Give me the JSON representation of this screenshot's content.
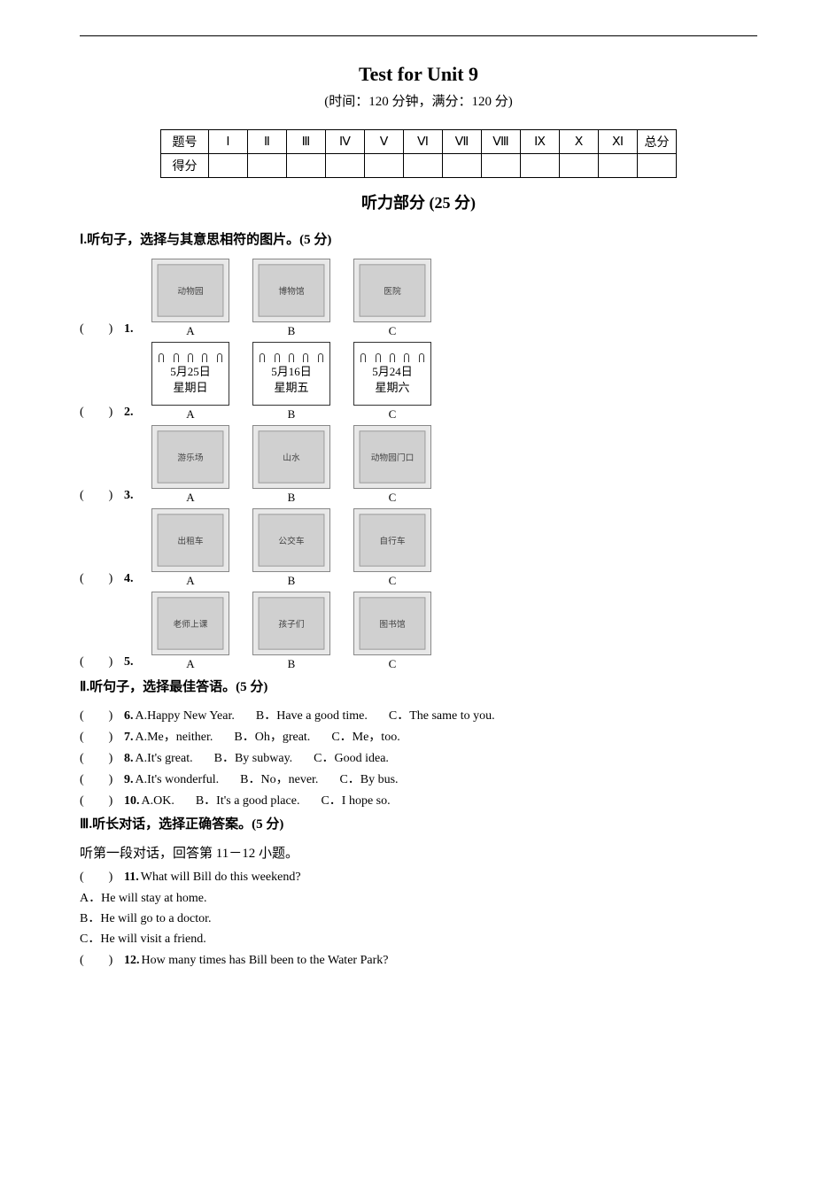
{
  "title": "Test for Unit 9",
  "subtitle": "(时间：120 分钟，满分：120 分)",
  "score_table": {
    "row1": [
      "题号",
      "Ⅰ",
      "Ⅱ",
      "Ⅲ",
      "Ⅳ",
      "Ⅴ",
      "Ⅵ",
      "Ⅶ",
      "Ⅷ",
      "Ⅸ",
      "Ⅹ",
      "Ⅺ",
      "总分"
    ],
    "row2_label": "得分"
  },
  "listening_title": "听力部分 (25 分)",
  "part1": {
    "heading": "Ⅰ.听句子，选择与其意思相符的图片。(5 分)",
    "questions": [
      {
        "num": "1.",
        "images": [
          {
            "label": "A",
            "desc": "动物园"
          },
          {
            "label": "B",
            "desc": "博物馆"
          },
          {
            "label": "C",
            "desc": "医院"
          }
        ]
      },
      {
        "num": "2.",
        "images": [
          {
            "label": "A",
            "type": "calendar",
            "line1": "5月25日",
            "line2": "星期日"
          },
          {
            "label": "B",
            "type": "calendar",
            "line1": "5月16日",
            "line2": "星期五"
          },
          {
            "label": "C",
            "type": "calendar",
            "line1": "5月24日",
            "line2": "星期六"
          }
        ]
      },
      {
        "num": "3.",
        "images": [
          {
            "label": "A",
            "desc": "游乐场"
          },
          {
            "label": "B",
            "desc": "山水"
          },
          {
            "label": "C",
            "desc": "动物园门口"
          }
        ]
      },
      {
        "num": "4.",
        "images": [
          {
            "label": "A",
            "desc": "出租车"
          },
          {
            "label": "B",
            "desc": "公交车"
          },
          {
            "label": "C",
            "desc": "自行车"
          }
        ]
      },
      {
        "num": "5.",
        "images": [
          {
            "label": "A",
            "desc": "老师上课"
          },
          {
            "label": "B",
            "desc": "孩子们"
          },
          {
            "label": "C",
            "desc": "图书馆"
          }
        ]
      }
    ]
  },
  "part2": {
    "heading": "Ⅱ.听句子，选择最佳答语。(5 分)",
    "questions": [
      {
        "num": "6.",
        "opts": [
          "A.Happy New Year.",
          "B．Have a good time.",
          "C．The same to you."
        ]
      },
      {
        "num": "7.",
        "opts": [
          "A.Me，neither.",
          "B．Oh，great.",
          "C．Me，too."
        ]
      },
      {
        "num": "8.",
        "opts": [
          "A.It's great.",
          "B．By subway.",
          "C．Good idea."
        ]
      },
      {
        "num": "9.",
        "opts": [
          "A.It's wonderful.",
          "B．No，never.",
          "C．By bus."
        ]
      },
      {
        "num": "10.",
        "opts": [
          "A.OK.",
          "B．It's a good place.",
          "C．I hope so."
        ]
      }
    ]
  },
  "part3": {
    "heading": "Ⅲ.听长对话，选择正确答案。(5 分)",
    "instr": "听第一段对话，回答第 11－12 小题。",
    "q11": {
      "num": "11.",
      "text": "What will Bill do this weekend?",
      "opts": [
        "A．He will stay at home.",
        "B．He will go to a doctor.",
        "C．He will visit a friend."
      ]
    },
    "q12": {
      "num": "12.",
      "text": "How many times has Bill been to the Water Park?"
    }
  },
  "bracket": "(　　)"
}
